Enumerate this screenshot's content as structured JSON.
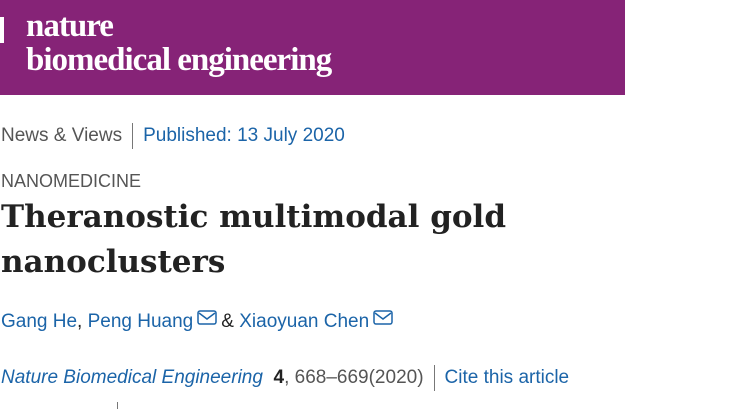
{
  "header": {
    "brand_line1": "nature",
    "brand_line2": "biomedical engineering"
  },
  "meta": {
    "article_type": "News & Views",
    "published": "Published: 13 July 2020"
  },
  "subject": "NANOMEDICINE",
  "title": "Theranostic multimodal gold nanoclusters",
  "authors": {
    "names": [
      "Gang He",
      "Peng Huang",
      "Xiaoyuan Chen"
    ],
    "separators": [
      ",",
      "&"
    ]
  },
  "citation": {
    "journal": "Nature Biomedical Engineering",
    "volume": "4",
    "pages": ", 668–669",
    "year": "(2020)",
    "cite_link": "Cite this article"
  }
}
